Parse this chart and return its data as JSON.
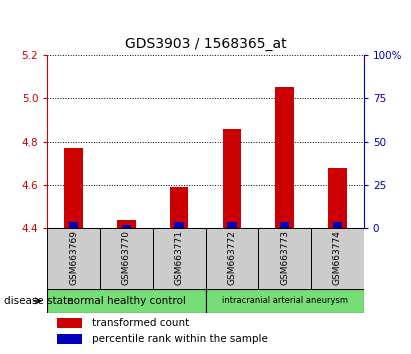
{
  "title": "GDS3903 / 1568365_at",
  "samples": [
    "GSM663769",
    "GSM663770",
    "GSM663771",
    "GSM663772",
    "GSM663773",
    "GSM663774"
  ],
  "transformed_counts": [
    4.77,
    4.44,
    4.59,
    4.86,
    5.05,
    4.68
  ],
  "percentile_ranks": [
    3.5,
    2.0,
    3.5,
    3.5,
    3.5,
    3.5
  ],
  "ymin": 4.4,
  "ymax": 5.2,
  "yticks": [
    4.4,
    4.6,
    4.8,
    5.0,
    5.2
  ],
  "right_yticks": [
    0,
    25,
    50,
    75,
    100
  ],
  "bar_width": 0.35,
  "blue_bar_width": 0.18,
  "red_color": "#cc0000",
  "blue_color": "#0000bb",
  "group1_label": "normal healthy control",
  "group2_label": "intracranial arterial aneurysm",
  "group_color": "#77dd77",
  "sample_box_color": "#cccccc",
  "disease_state_label": "disease state",
  "legend_red": "transformed count",
  "legend_blue": "percentile rank within the sample",
  "left_axis_color": "#cc0000",
  "right_axis_color": "#0000bb",
  "title_fontsize": 10,
  "tick_fontsize": 7.5,
  "label_fontsize": 6.5,
  "bar_base": 4.4
}
